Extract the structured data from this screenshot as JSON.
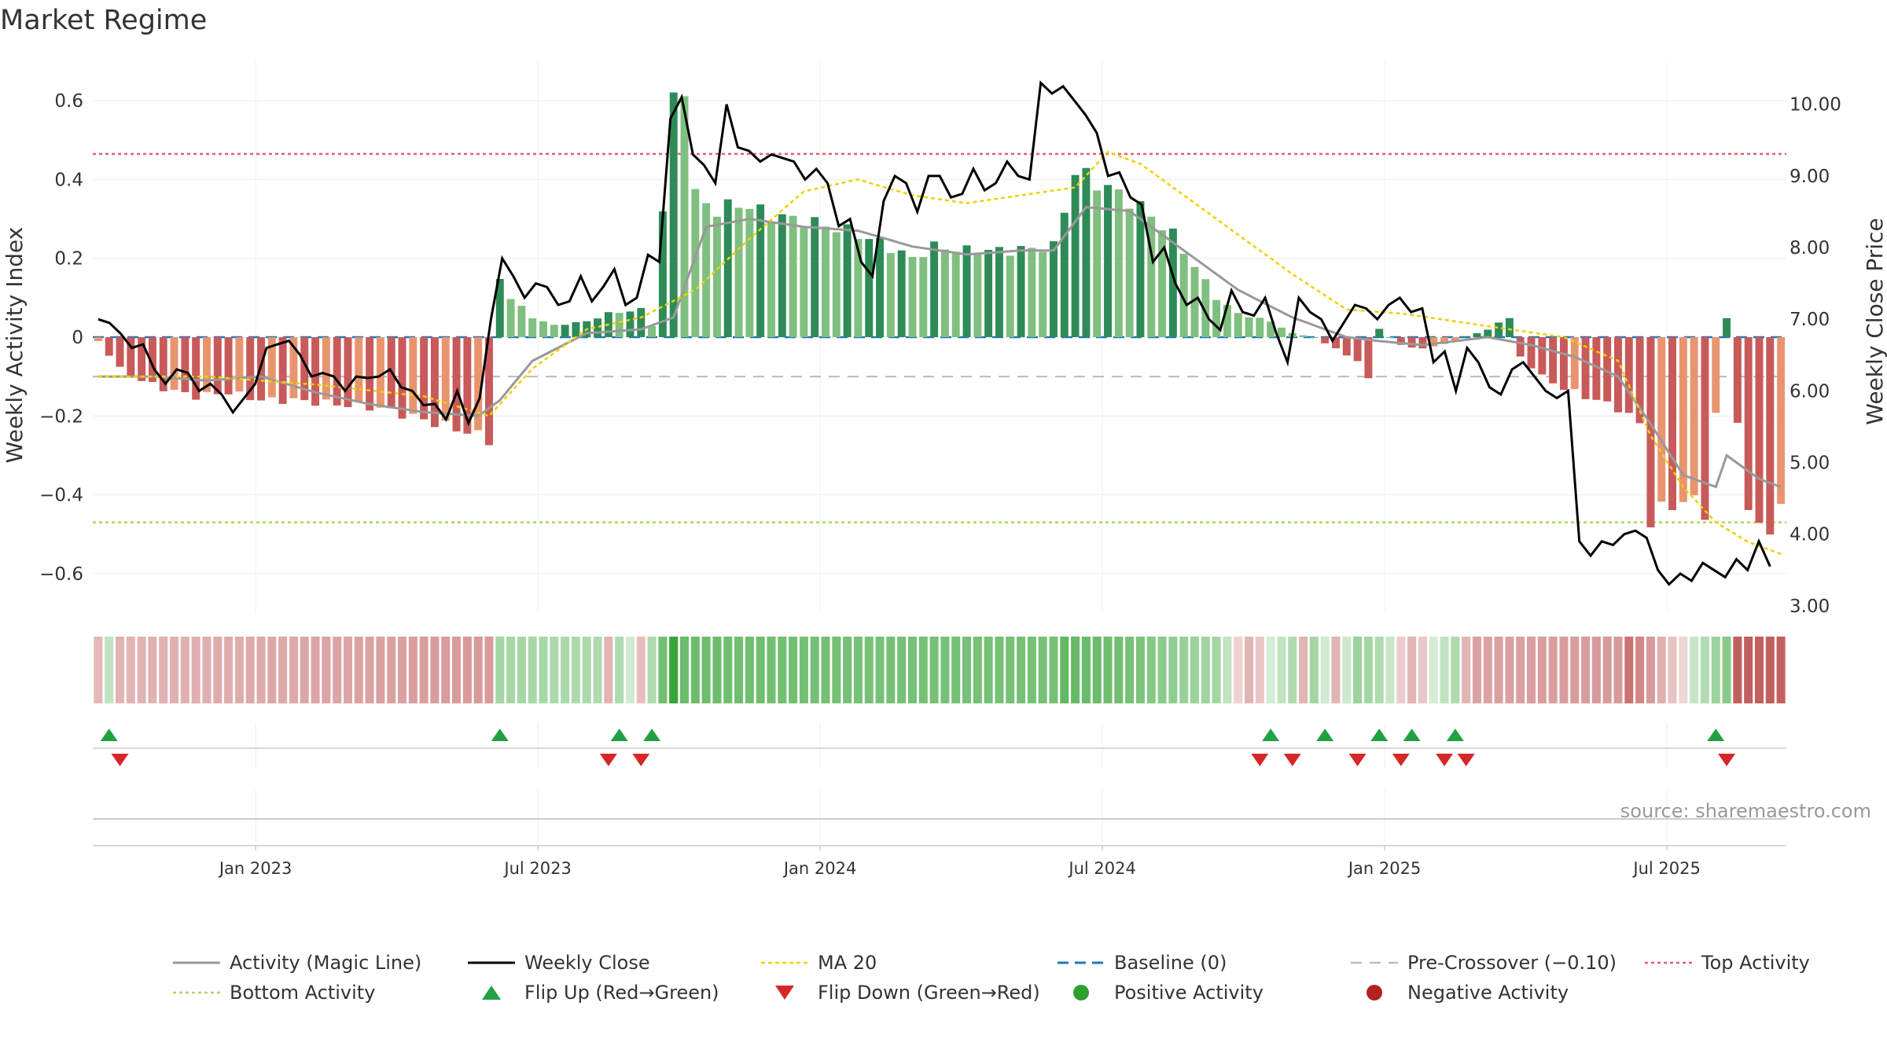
{
  "page": {
    "title": "Market Regime"
  },
  "colors": {
    "strong_green": "#2e8b57",
    "light_green": "#7fbf7f",
    "strong_red": "#c85a5a",
    "light_red": "#e8956e",
    "close": "#000000",
    "magic": "#999999",
    "ma20": "#f0d000",
    "baseline": "#1f77b4",
    "pre_cross": "#bbbbbb",
    "top": "#e06070",
    "bottom": "#a8d860",
    "flip_up": "#22a045",
    "flip_down": "#d62728",
    "positive": "#2ca02c",
    "negative": "#b22222"
  },
  "source": "source: sharemaestro.com",
  "chart_data": {
    "type": "bar",
    "title": "Market Regime",
    "ylabel_left": "Weekly Activity Index",
    "ylabel_right": "Weekly Close Price",
    "ylim_left": [
      -0.7,
      0.7
    ],
    "ylim_right": [
      2.9,
      10.6
    ],
    "left_ticks": [
      {
        "value": 0.6,
        "label": "0.6"
      },
      {
        "value": 0.4,
        "label": "0.4"
      },
      {
        "value": 0.2,
        "label": "0.2"
      },
      {
        "value": 0,
        "label": "0"
      },
      {
        "value": -0.2,
        "label": "−0.2"
      },
      {
        "value": -0.4,
        "label": "−0.4"
      },
      {
        "value": -0.6,
        "label": "−0.6"
      }
    ],
    "right_ticks": [
      {
        "value": 10,
        "label": "10.00"
      },
      {
        "value": 9,
        "label": "9.00"
      },
      {
        "value": 8,
        "label": "8.00"
      },
      {
        "value": 7,
        "label": "7.00"
      },
      {
        "value": 6,
        "label": "6.00"
      },
      {
        "value": 5,
        "label": "5.00"
      },
      {
        "value": 4,
        "label": "4.00"
      },
      {
        "value": 3,
        "label": "3.00"
      }
    ],
    "date_ticks": [
      {
        "label": "Jan 2023",
        "week": 15
      },
      {
        "label": "Jul 2023",
        "week": 41
      },
      {
        "label": "Jan 2024",
        "week": 67
      },
      {
        "label": "Jul 2024",
        "week": 93
      },
      {
        "label": "Jan 2025",
        "week": 119
      },
      {
        "label": "Jul 2025",
        "week": 145
      }
    ],
    "weeks": 156,
    "reference_lines": {
      "baseline": 0,
      "pre_crossover": -0.1,
      "top_activity": 0.465,
      "bottom_activity": -0.47
    },
    "activity_keyframes": [
      [
        0,
        -0.01
      ],
      [
        2,
        -0.08
      ],
      [
        4,
        -0.11
      ],
      [
        6,
        -0.13
      ],
      [
        9,
        -0.15
      ],
      [
        12,
        -0.14
      ],
      [
        15,
        -0.16
      ],
      [
        18,
        -0.16
      ],
      [
        22,
        -0.17
      ],
      [
        26,
        -0.18
      ],
      [
        30,
        -0.21
      ],
      [
        34,
        -0.24
      ],
      [
        36,
        -0.26
      ],
      [
        37,
        0.15
      ],
      [
        38,
        0.1
      ],
      [
        40,
        0.05
      ],
      [
        42,
        0.03
      ],
      [
        45,
        0.04
      ],
      [
        47,
        0.06
      ],
      [
        50,
        0.07
      ],
      [
        51,
        0.03
      ],
      [
        53,
        0.6
      ],
      [
        54,
        0.65
      ],
      [
        55,
        0.36
      ],
      [
        57,
        0.32
      ],
      [
        59,
        0.34
      ],
      [
        62,
        0.31
      ],
      [
        66,
        0.29
      ],
      [
        69,
        0.27
      ],
      [
        72,
        0.24
      ],
      [
        75,
        0.2
      ],
      [
        77,
        0.23
      ],
      [
        80,
        0.22
      ],
      [
        84,
        0.22
      ],
      [
        88,
        0.23
      ],
      [
        90,
        0.42
      ],
      [
        93,
        0.38
      ],
      [
        96,
        0.33
      ],
      [
        99,
        0.26
      ],
      [
        101,
        0.18
      ],
      [
        103,
        0.1
      ],
      [
        105,
        0.06
      ],
      [
        108,
        0.04
      ],
      [
        110,
        0.01
      ],
      [
        112,
        0.0
      ],
      [
        114,
        -0.03
      ],
      [
        116,
        -0.06
      ],
      [
        117,
        -0.11
      ],
      [
        118,
        0.02
      ],
      [
        120,
        -0.02
      ],
      [
        122,
        -0.03
      ],
      [
        125,
        -0.01
      ],
      [
        128,
        0.02
      ],
      [
        130,
        0.05
      ],
      [
        131,
        -0.05
      ],
      [
        133,
        -0.1
      ],
      [
        135,
        -0.13
      ],
      [
        137,
        -0.15
      ],
      [
        140,
        -0.18
      ],
      [
        142,
        -0.22
      ],
      [
        143,
        -0.46
      ],
      [
        146,
        -0.41
      ],
      [
        148,
        -0.44
      ],
      [
        150,
        0.05
      ],
      [
        152,
        -0.46
      ],
      [
        154,
        -0.48
      ],
      [
        155,
        -0.45
      ]
    ],
    "magic_keyframes": [
      [
        0,
        -0.1
      ],
      [
        5,
        -0.1
      ],
      [
        10,
        -0.11
      ],
      [
        15,
        -0.1
      ],
      [
        20,
        -0.14
      ],
      [
        25,
        -0.17
      ],
      [
        30,
        -0.19
      ],
      [
        35,
        -0.2
      ],
      [
        37,
        -0.16
      ],
      [
        40,
        -0.06
      ],
      [
        45,
        0.01
      ],
      [
        50,
        0.02
      ],
      [
        53,
        0.05
      ],
      [
        56,
        0.28
      ],
      [
        60,
        0.3
      ],
      [
        65,
        0.28
      ],
      [
        70,
        0.27
      ],
      [
        75,
        0.23
      ],
      [
        80,
        0.21
      ],
      [
        85,
        0.22
      ],
      [
        88,
        0.22
      ],
      [
        91,
        0.33
      ],
      [
        95,
        0.32
      ],
      [
        100,
        0.22
      ],
      [
        105,
        0.12
      ],
      [
        110,
        0.05
      ],
      [
        115,
        0.0
      ],
      [
        118,
        -0.01
      ],
      [
        122,
        -0.02
      ],
      [
        128,
        0.0
      ],
      [
        132,
        -0.02
      ],
      [
        136,
        -0.05
      ],
      [
        140,
        -0.1
      ],
      [
        143,
        -0.22
      ],
      [
        146,
        -0.35
      ],
      [
        149,
        -0.38
      ],
      [
        150,
        -0.3
      ],
      [
        153,
        -0.36
      ],
      [
        155,
        -0.38
      ]
    ],
    "ma20_keyframes": [
      [
        0,
        -0.1
      ],
      [
        10,
        -0.1
      ],
      [
        20,
        -0.12
      ],
      [
        30,
        -0.15
      ],
      [
        36,
        -0.2
      ],
      [
        40,
        -0.08
      ],
      [
        45,
        0.02
      ],
      [
        50,
        0.05
      ],
      [
        55,
        0.12
      ],
      [
        60,
        0.25
      ],
      [
        65,
        0.37
      ],
      [
        70,
        0.4
      ],
      [
        75,
        0.36
      ],
      [
        80,
        0.34
      ],
      [
        85,
        0.36
      ],
      [
        90,
        0.38
      ],
      [
        93,
        0.47
      ],
      [
        96,
        0.44
      ],
      [
        100,
        0.36
      ],
      [
        105,
        0.26
      ],
      [
        110,
        0.16
      ],
      [
        115,
        0.07
      ],
      [
        120,
        0.06
      ],
      [
        125,
        0.04
      ],
      [
        130,
        0.02
      ],
      [
        135,
        0.0
      ],
      [
        140,
        -0.06
      ],
      [
        143,
        -0.25
      ],
      [
        146,
        -0.38
      ],
      [
        149,
        -0.47
      ],
      [
        152,
        -0.52
      ],
      [
        155,
        -0.55
      ]
    ],
    "close_keyframes": [
      [
        0,
        7.0
      ],
      [
        1,
        6.95
      ],
      [
        2,
        6.8
      ],
      [
        3,
        6.6
      ],
      [
        4,
        6.65
      ],
      [
        5,
        6.3
      ],
      [
        6,
        6.1
      ],
      [
        7,
        6.3
      ],
      [
        8,
        6.25
      ],
      [
        9,
        6.0
      ],
      [
        10,
        6.1
      ],
      [
        11,
        5.95
      ],
      [
        12,
        5.7
      ],
      [
        13,
        5.9
      ],
      [
        14,
        6.1
      ],
      [
        15,
        6.6
      ],
      [
        16,
        6.65
      ],
      [
        17,
        6.7
      ],
      [
        18,
        6.5
      ],
      [
        19,
        6.2
      ],
      [
        20,
        6.25
      ],
      [
        21,
        6.2
      ],
      [
        22,
        6.0
      ],
      [
        23,
        6.2
      ],
      [
        24,
        6.18
      ],
      [
        25,
        6.2
      ],
      [
        26,
        6.3
      ],
      [
        27,
        6.05
      ],
      [
        28,
        6.0
      ],
      [
        29,
        5.8
      ],
      [
        30,
        5.82
      ],
      [
        31,
        5.6
      ],
      [
        32,
        6.0
      ],
      [
        33,
        5.55
      ],
      [
        34,
        5.9
      ],
      [
        35,
        7.0
      ],
      [
        36,
        7.85
      ],
      [
        37,
        7.6
      ],
      [
        38,
        7.3
      ],
      [
        39,
        7.5
      ],
      [
        40,
        7.45
      ],
      [
        41,
        7.2
      ],
      [
        42,
        7.25
      ],
      [
        43,
        7.6
      ],
      [
        44,
        7.25
      ],
      [
        45,
        7.45
      ],
      [
        46,
        7.7
      ],
      [
        47,
        7.2
      ],
      [
        48,
        7.3
      ],
      [
        49,
        7.9
      ],
      [
        50,
        7.8
      ],
      [
        51,
        9.8
      ],
      [
        52,
        10.1
      ],
      [
        53,
        9.3
      ],
      [
        54,
        9.15
      ],
      [
        55,
        8.9
      ],
      [
        56,
        10.0
      ],
      [
        57,
        9.4
      ],
      [
        58,
        9.35
      ],
      [
        59,
        9.2
      ],
      [
        60,
        9.3
      ],
      [
        61,
        9.25
      ],
      [
        62,
        9.2
      ],
      [
        63,
        8.95
      ],
      [
        64,
        9.1
      ],
      [
        65,
        8.9
      ],
      [
        66,
        8.3
      ],
      [
        67,
        8.4
      ],
      [
        68,
        7.8
      ],
      [
        69,
        7.6
      ],
      [
        70,
        8.65
      ],
      [
        71,
        9.0
      ],
      [
        72,
        8.9
      ],
      [
        73,
        8.5
      ],
      [
        74,
        9.0
      ],
      [
        75,
        9.0
      ],
      [
        76,
        8.7
      ],
      [
        77,
        8.75
      ],
      [
        78,
        9.1
      ],
      [
        79,
        8.8
      ],
      [
        80,
        8.9
      ],
      [
        81,
        9.2
      ],
      [
        82,
        9.0
      ],
      [
        83,
        8.95
      ],
      [
        84,
        10.3
      ],
      [
        85,
        10.15
      ],
      [
        86,
        10.25
      ],
      [
        87,
        10.05
      ],
      [
        88,
        9.85
      ],
      [
        89,
        9.6
      ],
      [
        90,
        9.0
      ],
      [
        91,
        9.05
      ],
      [
        92,
        8.7
      ],
      [
        93,
        8.6
      ],
      [
        94,
        7.8
      ],
      [
        95,
        8.0
      ],
      [
        96,
        7.5
      ],
      [
        97,
        7.2
      ],
      [
        98,
        7.3
      ],
      [
        99,
        7.0
      ],
      [
        100,
        6.85
      ],
      [
        101,
        7.4
      ],
      [
        102,
        7.1
      ],
      [
        103,
        7.05
      ],
      [
        104,
        7.3
      ],
      [
        105,
        6.8
      ],
      [
        106,
        6.4
      ],
      [
        107,
        7.3
      ],
      [
        108,
        7.1
      ],
      [
        109,
        7.0
      ],
      [
        110,
        6.7
      ],
      [
        111,
        6.95
      ],
      [
        112,
        7.2
      ],
      [
        113,
        7.15
      ],
      [
        114,
        7.0
      ],
      [
        115,
        7.2
      ],
      [
        116,
        7.3
      ],
      [
        117,
        7.1
      ],
      [
        118,
        7.15
      ],
      [
        119,
        6.4
      ],
      [
        120,
        6.55
      ],
      [
        121,
        6.0
      ],
      [
        122,
        6.6
      ],
      [
        123,
        6.4
      ],
      [
        124,
        6.05
      ],
      [
        125,
        5.95
      ],
      [
        126,
        6.3
      ],
      [
        127,
        6.4
      ],
      [
        128,
        6.2
      ],
      [
        129,
        6.0
      ],
      [
        130,
        5.9
      ],
      [
        131,
        6.0
      ],
      [
        132,
        3.9
      ],
      [
        133,
        3.7
      ],
      [
        134,
        3.9
      ],
      [
        135,
        3.85
      ],
      [
        136,
        4.0
      ],
      [
        137,
        4.05
      ],
      [
        138,
        3.95
      ],
      [
        139,
        3.5
      ],
      [
        140,
        3.3
      ],
      [
        141,
        3.45
      ],
      [
        142,
        3.35
      ],
      [
        143,
        3.6
      ],
      [
        144,
        3.5
      ],
      [
        145,
        3.4
      ],
      [
        146,
        3.65
      ],
      [
        147,
        3.5
      ],
      [
        148,
        3.9
      ],
      [
        149,
        3.55
      ]
    ],
    "regime_keyframes": [
      [
        0,
        -0.18
      ],
      [
        1,
        0.1
      ],
      [
        2,
        -0.2
      ],
      [
        36,
        -0.35
      ],
      [
        37,
        0.25
      ],
      [
        46,
        0.2
      ],
      [
        47,
        -0.2
      ],
      [
        48,
        0.2
      ],
      [
        50,
        -0.15
      ],
      [
        51,
        0.2
      ],
      [
        53,
        0.85
      ],
      [
        54,
        0.55
      ],
      [
        70,
        0.5
      ],
      [
        88,
        0.5
      ],
      [
        89,
        0.6
      ],
      [
        95,
        0.5
      ],
      [
        99,
        0.35
      ],
      [
        103,
        0.25
      ],
      [
        106,
        -0.2
      ],
      [
        110,
        0.2
      ],
      [
        111,
        -0.2
      ],
      [
        112,
        0.25
      ],
      [
        114,
        -0.2
      ],
      [
        116,
        0.3
      ],
      [
        118,
        0.2
      ],
      [
        121,
        -0.2
      ],
      [
        125,
        0.2
      ],
      [
        126,
        -0.2
      ],
      [
        127,
        -0.3
      ],
      [
        140,
        -0.35
      ],
      [
        141,
        -0.55
      ],
      [
        150,
        0.4
      ],
      [
        151,
        -0.65
      ],
      [
        155,
        -0.65
      ]
    ],
    "flip_up_weeks": [
      1,
      37,
      48,
      51,
      108,
      113,
      118,
      121,
      125,
      149
    ],
    "flip_down_weeks": [
      2,
      47,
      50,
      107,
      110,
      116,
      120,
      124,
      126,
      150
    ],
    "legend": [
      {
        "label": "Activity (Magic Line)",
        "key": "magic"
      },
      {
        "label": "Weekly Close",
        "key": "close"
      },
      {
        "label": "MA 20",
        "key": "ma20"
      },
      {
        "label": "Baseline (0)",
        "key": "baseline"
      },
      {
        "label": "Pre-Crossover (−0.10)",
        "key": "pre_cross"
      },
      {
        "label": "Top Activity",
        "key": "top"
      },
      {
        "label": "Bottom Activity",
        "key": "bottom"
      },
      {
        "label": "Flip Up (Red→Green)",
        "key": "flip_up"
      },
      {
        "label": "Flip Down (Green→Red)",
        "key": "flip_down"
      },
      {
        "label": "Positive Activity",
        "key": "positive"
      },
      {
        "label": "Negative Activity",
        "key": "negative"
      }
    ]
  }
}
